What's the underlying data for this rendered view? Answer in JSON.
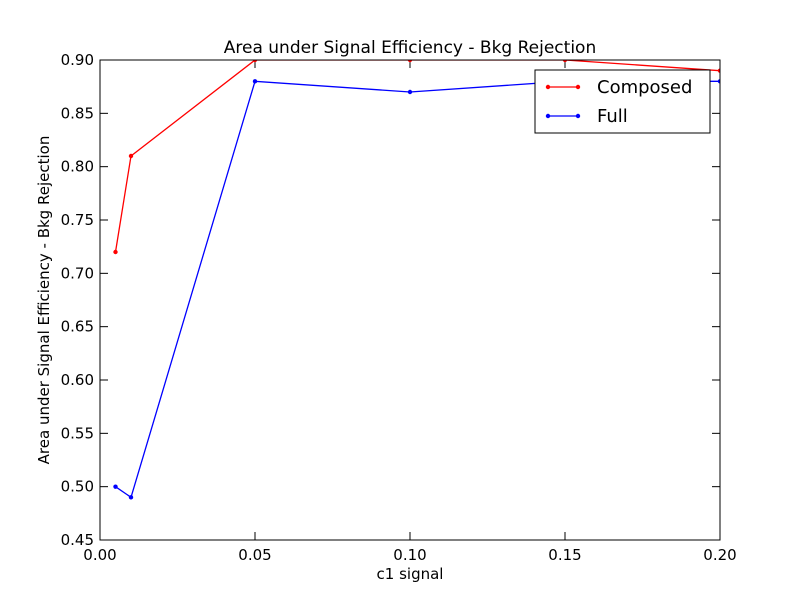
{
  "chart_data": {
    "type": "line",
    "title": "Area under Signal Efficiency - Bkg Rejection",
    "xlabel": "c1 signal",
    "ylabel": "Area under Signal Efficiency - Bkg Rejection",
    "xlim": [
      0.0,
      0.2
    ],
    "ylim": [
      0.45,
      0.9
    ],
    "xticks": [
      0.0,
      0.05,
      0.1,
      0.15,
      0.2
    ],
    "xtick_labels": [
      "0.00",
      "0.05",
      "0.10",
      "0.15",
      "0.20"
    ],
    "yticks": [
      0.45,
      0.5,
      0.55,
      0.6,
      0.65,
      0.7,
      0.75,
      0.8,
      0.85,
      0.9
    ],
    "ytick_labels": [
      "0.45",
      "0.50",
      "0.55",
      "0.60",
      "0.65",
      "0.70",
      "0.75",
      "0.80",
      "0.85",
      "0.90"
    ],
    "grid": false,
    "legend_position": "top-right",
    "series": [
      {
        "name": "Composed",
        "color": "#ff0000",
        "x": [
          0.005,
          0.01,
          0.05,
          0.1,
          0.15,
          0.2
        ],
        "y": [
          0.72,
          0.81,
          0.9,
          0.9,
          0.9,
          0.89
        ]
      },
      {
        "name": "Full",
        "color": "#0000ff",
        "x": [
          0.005,
          0.01,
          0.05,
          0.1,
          0.15,
          0.2
        ],
        "y": [
          0.5,
          0.49,
          0.88,
          0.87,
          0.88,
          0.88
        ]
      }
    ]
  }
}
